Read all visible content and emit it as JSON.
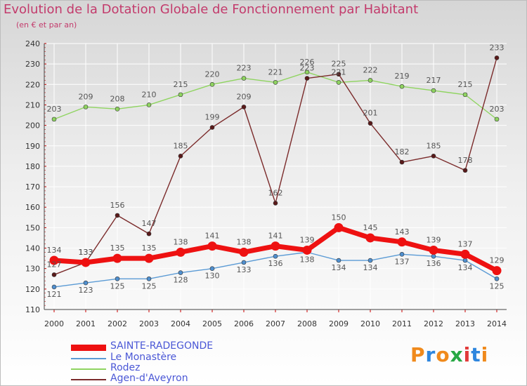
{
  "header": {
    "title": "Evolution de la Dotation Globale de Fonctionnement par Habitant",
    "subtitle": "(en € et par an)"
  },
  "logo": {
    "text": "Proxiti",
    "colors": [
      "#f08a1c",
      "#2e86de",
      "#f08a1c",
      "#27a844",
      "#e23b3b",
      "#2e86de",
      "#f08a1c"
    ]
  },
  "chart_data": {
    "type": "line",
    "x": [
      "2000",
      "2001",
      "2002",
      "2003",
      "2004",
      "2005",
      "2006",
      "2007",
      "2008",
      "2009",
      "2010",
      "2011",
      "2012",
      "2013",
      "2014"
    ],
    "ylim": [
      110,
      240
    ],
    "yticks": [
      110,
      120,
      130,
      140,
      150,
      160,
      170,
      180,
      190,
      200,
      210,
      220,
      230,
      240
    ],
    "series": [
      {
        "name": "SAINTE-RADEGONDE",
        "color": "#ee1111",
        "values": [
          134,
          133,
          135,
          135,
          138,
          141,
          138,
          141,
          139,
          150,
          145,
          143,
          139,
          137,
          129
        ]
      },
      {
        "name": "Le Monastère",
        "color": "#5b9bd5",
        "values": [
          121,
          123,
          125,
          125,
          128,
          130,
          133,
          136,
          138,
          134,
          134,
          137,
          136,
          134,
          125
        ]
      },
      {
        "name": "Rodez",
        "color": "#8fd460",
        "values": [
          203,
          209,
          208,
          210,
          215,
          220,
          223,
          221,
          226,
          221,
          222,
          219,
          217,
          215,
          203
        ]
      },
      {
        "name": "Agen-d'Aveyron",
        "color": "#7b2b2b",
        "values": [
          127,
          133,
          156,
          147,
          185,
          199,
          209,
          162,
          223,
          225,
          201,
          182,
          185,
          178,
          233
        ]
      }
    ]
  }
}
